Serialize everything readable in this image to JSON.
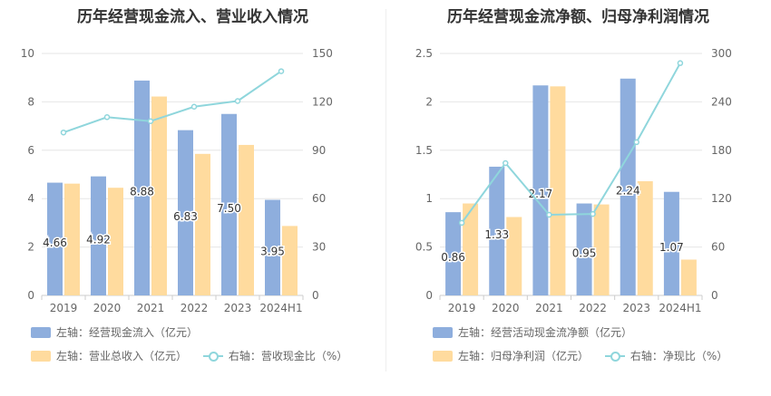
{
  "chart_data": [
    {
      "type": "bar",
      "title": "历年经营现金流入、营业收入情况",
      "categories": [
        "2019",
        "2020",
        "2021",
        "2022",
        "2023",
        "2024H1"
      ],
      "left_axis": {
        "ylim": [
          0,
          10
        ],
        "ticks": [
          "0",
          "2",
          "4",
          "6",
          "8",
          "10"
        ]
      },
      "right_axis": {
        "ylim": [
          0,
          150
        ],
        "ticks": [
          "0",
          "30",
          "60",
          "90",
          "120",
          "150"
        ]
      },
      "series": [
        {
          "name": "左轴：经营现金流入（亿元）",
          "axis": "left",
          "kind": "bar",
          "color": "#8eaedd",
          "values": [
            4.66,
            4.92,
            8.88,
            6.83,
            7.5,
            3.95
          ],
          "labels": [
            "4.66",
            "4.92",
            "8.88",
            "6.83",
            "7.50",
            "3.95"
          ]
        },
        {
          "name": "左轴：营业总收入（亿元）",
          "axis": "left",
          "kind": "bar",
          "color": "#ffdb9e",
          "values": [
            4.62,
            4.45,
            8.22,
            5.85,
            6.22,
            2.87
          ]
        },
        {
          "name": "右轴：营收现金比（%）",
          "axis": "right",
          "kind": "line",
          "color": "#8fd6dc",
          "values": [
            101,
            110.5,
            108,
            117,
            120.5,
            139
          ]
        }
      ],
      "grid": true
    },
    {
      "type": "bar",
      "title": "历年经营现金流净额、归母净利润情况",
      "categories": [
        "2019",
        "2020",
        "2021",
        "2022",
        "2023",
        "2024H1"
      ],
      "left_axis": {
        "ylim": [
          0,
          2.5
        ],
        "ticks": [
          "0",
          "0.5",
          "1",
          "1.5",
          "2",
          "2.5"
        ]
      },
      "right_axis": {
        "ylim": [
          0,
          300
        ],
        "ticks": [
          "0",
          "60",
          "120",
          "180",
          "240",
          "300"
        ]
      },
      "series": [
        {
          "name": "左轴：经营活动现金流净额（亿元）",
          "axis": "left",
          "kind": "bar",
          "color": "#8eaedd",
          "values": [
            0.86,
            1.33,
            2.17,
            0.95,
            2.24,
            1.07
          ],
          "labels": [
            "0.86",
            "1.33",
            "2.17",
            "0.95",
            "2.24",
            "1.07"
          ]
        },
        {
          "name": "左轴：归母净利润（亿元）",
          "axis": "left",
          "kind": "bar",
          "color": "#ffdb9e",
          "values": [
            0.95,
            0.81,
            2.16,
            0.94,
            1.18,
            0.37
          ]
        },
        {
          "name": "右轴：净现比（%）",
          "axis": "right",
          "kind": "line",
          "color": "#8fd6dc",
          "values": [
            90,
            164,
            100,
            101,
            190,
            288
          ]
        }
      ],
      "grid": true
    }
  ]
}
